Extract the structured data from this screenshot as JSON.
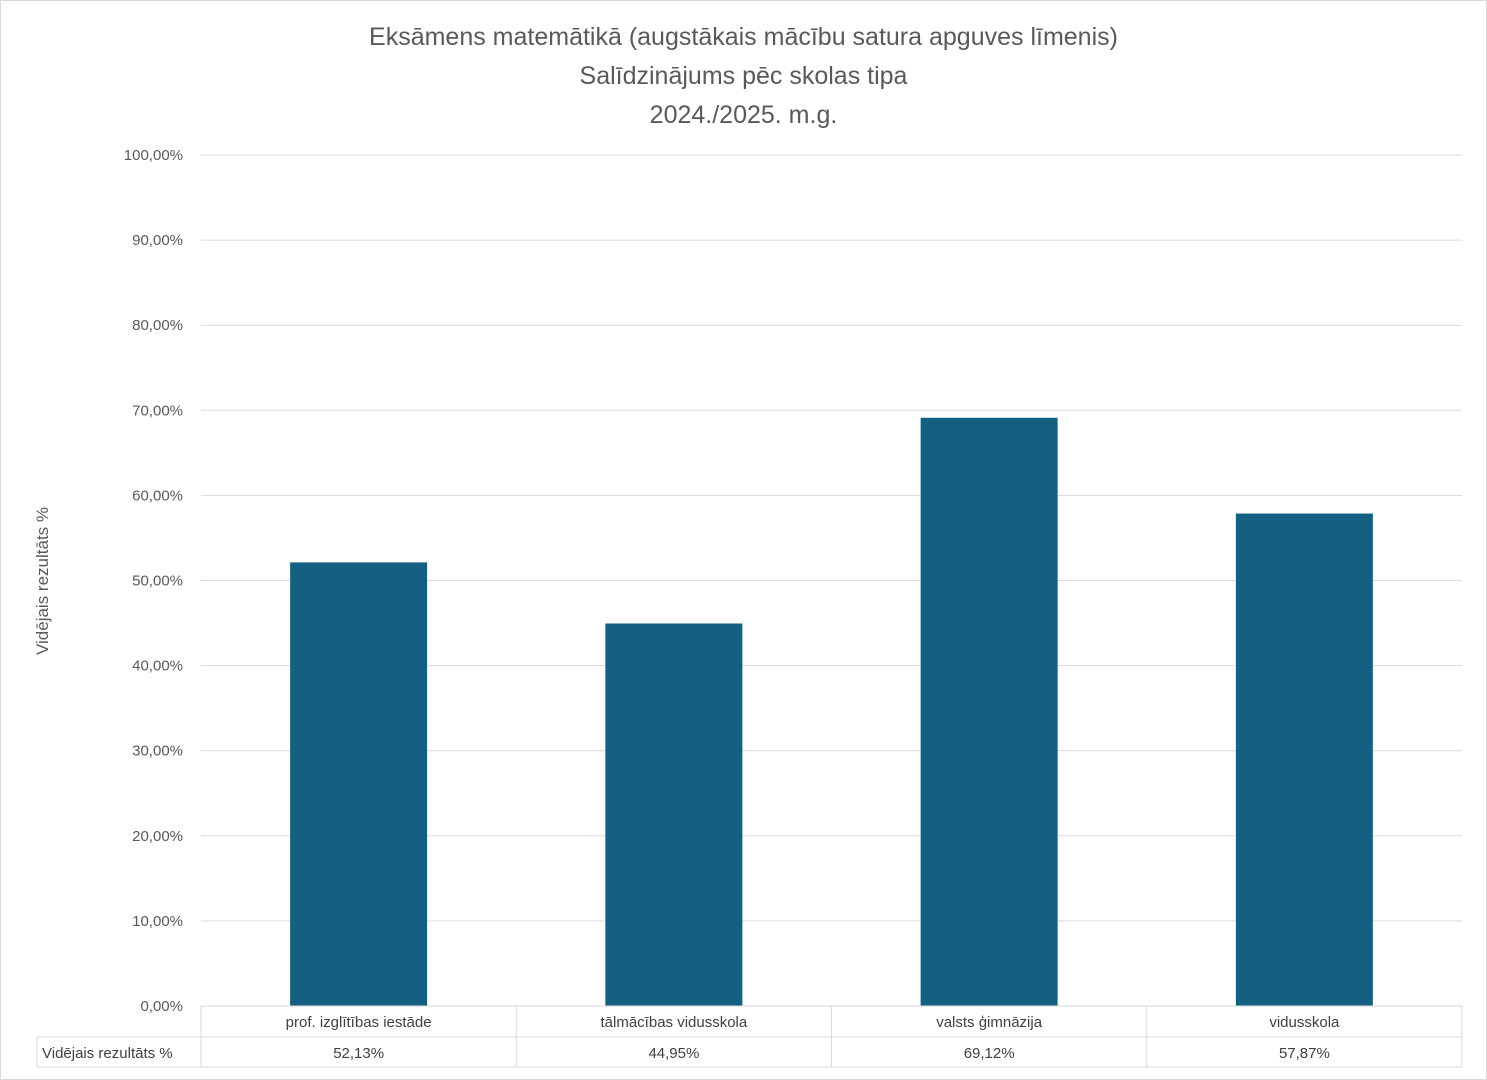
{
  "chart_data": {
    "type": "bar",
    "title": "Eksāmens matemātikā (augstākais mācību satura apguves līmenis)",
    "subtitle": [
      "Salīdzinājums pēc skolas tipa",
      "2024./2025. m.g."
    ],
    "xlabel": "",
    "ylabel": "Vidējais rezultāts %",
    "ylim": [
      0,
      100
    ],
    "yticks": [
      0,
      10,
      20,
      30,
      40,
      50,
      60,
      70,
      80,
      90,
      100
    ],
    "ytick_labels": [
      "0,00%",
      "10,00%",
      "20,00%",
      "30,00%",
      "40,00%",
      "50,00%",
      "60,00%",
      "70,00%",
      "80,00%",
      "90,00%",
      "100,00%"
    ],
    "categories": [
      "prof. izglītības iestāde",
      "tālmācības vidusskola",
      "valsts ģimnāzija",
      "vidusskola"
    ],
    "series": [
      {
        "name": "Vidējais rezultāts %",
        "values": [
          52.13,
          44.95,
          69.12,
          57.87
        ],
        "value_labels": [
          "52,13%",
          "44,95%",
          "69,12%",
          "57,87%"
        ],
        "color": "#156082"
      }
    ],
    "grid": true,
    "legend": "data-table-below"
  }
}
